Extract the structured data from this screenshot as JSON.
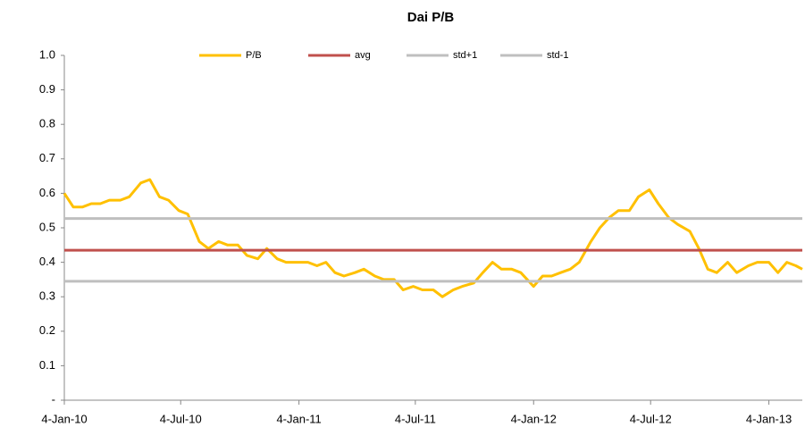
{
  "chart_data": {
    "type": "line",
    "title": "Dai P/B",
    "ylim": [
      0,
      1
    ],
    "yticks": [
      {
        "value": 0,
        "label": "-"
      },
      0.1,
      0.2,
      0.3,
      0.4,
      0.5,
      0.6,
      0.7,
      0.8,
      0.9,
      {
        "value": 1,
        "label": "1.0"
      }
    ],
    "xlim": [
      "2010-01-04",
      "2013-02-25"
    ],
    "xticks": [
      {
        "value": "2010-01-04",
        "label": "4-Jan-10"
      },
      {
        "value": "2010-07-04",
        "label": "4-Jul-10"
      },
      {
        "value": "2011-01-04",
        "label": "4-Jan-11"
      },
      {
        "value": "2011-07-04",
        "label": "4-Jul-11"
      },
      {
        "value": "2012-01-04",
        "label": "4-Jan-12"
      },
      {
        "value": "2012-07-04",
        "label": "4-Jul-12"
      },
      {
        "value": "2013-01-04",
        "label": "4-Jan-13"
      }
    ],
    "legend": "top",
    "x": [
      "2010-01-04",
      "2010-01-18",
      "2010-02-01",
      "2010-02-15",
      "2010-03-01",
      "2010-03-15",
      "2010-04-01",
      "2010-04-15",
      "2010-05-03",
      "2010-05-17",
      "2010-06-01",
      "2010-06-15",
      "2010-07-01",
      "2010-07-15",
      "2010-08-02",
      "2010-08-16",
      "2010-09-01",
      "2010-09-15",
      "2010-10-01",
      "2010-10-15",
      "2010-11-01",
      "2010-11-15",
      "2010-12-01",
      "2010-12-15",
      "2011-01-04",
      "2011-01-18",
      "2011-02-01",
      "2011-02-15",
      "2011-03-01",
      "2011-03-15",
      "2011-04-01",
      "2011-04-15",
      "2011-05-02",
      "2011-05-16",
      "2011-06-01",
      "2011-06-15",
      "2011-07-01",
      "2011-07-15",
      "2011-08-01",
      "2011-08-15",
      "2011-09-01",
      "2011-09-15",
      "2011-10-03",
      "2011-10-17",
      "2011-11-01",
      "2011-11-15",
      "2011-12-01",
      "2011-12-15",
      "2012-01-04",
      "2012-01-18",
      "2012-02-01",
      "2012-02-15",
      "2012-03-01",
      "2012-03-15",
      "2012-04-02",
      "2012-04-16",
      "2012-05-01",
      "2012-05-15",
      "2012-06-01",
      "2012-06-15",
      "2012-07-02",
      "2012-07-16",
      "2012-08-01",
      "2012-08-15",
      "2012-09-03",
      "2012-09-17",
      "2012-10-01",
      "2012-10-15",
      "2012-11-01",
      "2012-11-15",
      "2012-12-03",
      "2012-12-17",
      "2013-01-04",
      "2013-01-18",
      "2013-02-01",
      "2013-02-15",
      "2013-02-25"
    ],
    "series": [
      {
        "name": "P/B",
        "color": "#ffc000",
        "values": [
          0.6,
          0.56,
          0.56,
          0.57,
          0.57,
          0.58,
          0.58,
          0.59,
          0.63,
          0.64,
          0.59,
          0.58,
          0.55,
          0.54,
          0.46,
          0.44,
          0.46,
          0.45,
          0.45,
          0.42,
          0.41,
          0.44,
          0.41,
          0.4,
          0.4,
          0.4,
          0.39,
          0.4,
          0.37,
          0.36,
          0.37,
          0.38,
          0.36,
          0.35,
          0.35,
          0.32,
          0.33,
          0.32,
          0.32,
          0.3,
          0.32,
          0.33,
          0.34,
          0.37,
          0.4,
          0.38,
          0.38,
          0.37,
          0.33,
          0.36,
          0.36,
          0.37,
          0.38,
          0.4,
          0.46,
          0.5,
          0.53,
          0.55,
          0.55,
          0.59,
          0.61,
          0.57,
          0.53,
          0.51,
          0.49,
          0.44,
          0.38,
          0.37,
          0.4,
          0.37,
          0.39,
          0.4,
          0.4,
          0.37,
          0.4,
          0.39,
          0.38
        ]
      },
      {
        "name": "avg",
        "color": "#c0504d",
        "value": 0.435
      },
      {
        "name": "std+1",
        "color": "#bfbfbf",
        "value": 0.527
      },
      {
        "name": "std-1",
        "color": "#bfbfbf",
        "value": 0.345
      }
    ]
  }
}
